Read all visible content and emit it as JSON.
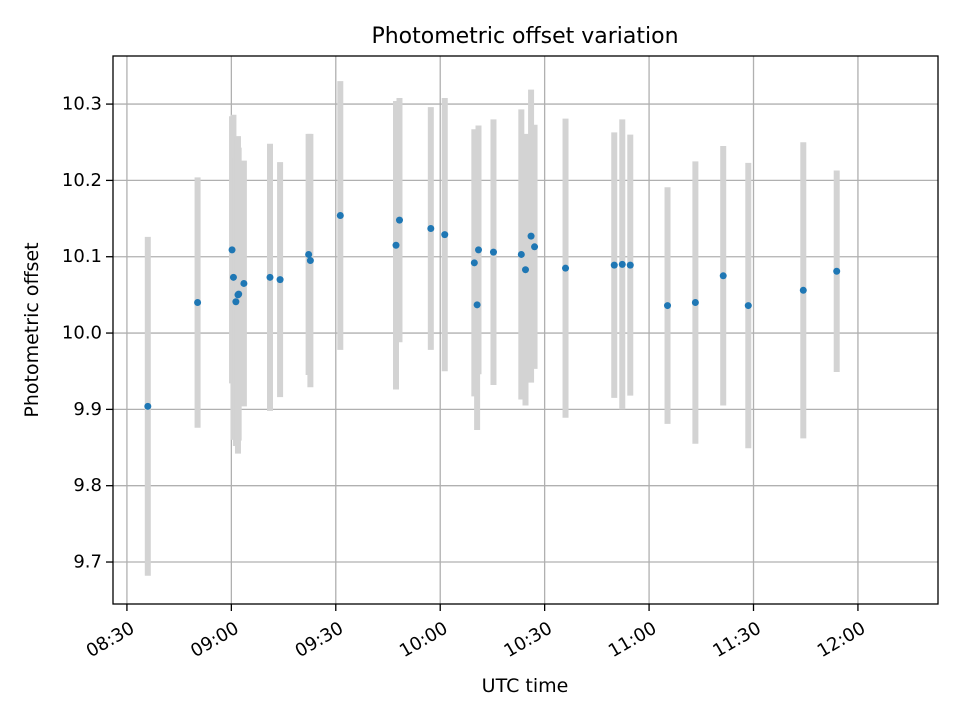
{
  "chart_data": {
    "type": "scatter",
    "title": "Photometric offset variation",
    "xlabel": "UTC time",
    "ylabel": "Photometric offset",
    "grid": true,
    "x_range_minutes": [
      506,
      743
    ],
    "ylim": [
      9.645,
      10.363
    ],
    "x_ticks": [
      {
        "minute": 510,
        "label": "08:30"
      },
      {
        "minute": 540,
        "label": "09:00"
      },
      {
        "minute": 570,
        "label": "09:30"
      },
      {
        "minute": 600,
        "label": "10:00"
      },
      {
        "minute": 630,
        "label": "10:30"
      },
      {
        "minute": 660,
        "label": "11:00"
      },
      {
        "minute": 690,
        "label": "11:30"
      },
      {
        "minute": 720,
        "label": "12:00"
      }
    ],
    "y_ticks": [
      9.7,
      9.8,
      9.9,
      10.0,
      10.1,
      10.2,
      10.3
    ],
    "x_unit": "minutes since 00:00 UTC",
    "series": [
      {
        "name": "offset",
        "marker_color": "#1f77b4",
        "errorbar_color": "#d3d3d3",
        "points": [
          {
            "x": 516.0,
            "y": 9.904,
            "err": 0.222
          },
          {
            "x": 530.3,
            "y": 10.04,
            "err": 0.164
          },
          {
            "x": 540.2,
            "y": 10.109,
            "err": 0.175
          },
          {
            "x": 540.6,
            "y": 10.073,
            "err": 0.213
          },
          {
            "x": 541.3,
            "y": 10.041,
            "err": 0.189
          },
          {
            "x": 541.9,
            "y": 10.05,
            "err": 0.208
          },
          {
            "x": 542.1,
            "y": 10.051,
            "err": 0.192
          },
          {
            "x": 543.6,
            "y": 10.065,
            "err": 0.161
          },
          {
            "x": 551.1,
            "y": 10.073,
            "err": 0.175
          },
          {
            "x": 554.0,
            "y": 10.07,
            "err": 0.154
          },
          {
            "x": 562.2,
            "y": 10.103,
            "err": 0.158
          },
          {
            "x": 562.7,
            "y": 10.095,
            "err": 0.166
          },
          {
            "x": 571.3,
            "y": 10.154,
            "err": 0.176
          },
          {
            "x": 587.3,
            "y": 10.115,
            "err": 0.189
          },
          {
            "x": 588.3,
            "y": 10.148,
            "err": 0.16
          },
          {
            "x": 597.3,
            "y": 10.137,
            "err": 0.159
          },
          {
            "x": 601.3,
            "y": 10.129,
            "err": 0.179
          },
          {
            "x": 609.8,
            "y": 10.092,
            "err": 0.175
          },
          {
            "x": 610.6,
            "y": 10.037,
            "err": 0.164
          },
          {
            "x": 611.0,
            "y": 10.109,
            "err": 0.163
          },
          {
            "x": 615.3,
            "y": 10.106,
            "err": 0.174
          },
          {
            "x": 623.3,
            "y": 10.103,
            "err": 0.19
          },
          {
            "x": 624.5,
            "y": 10.083,
            "err": 0.178
          },
          {
            "x": 626.1,
            "y": 10.127,
            "err": 0.192
          },
          {
            "x": 627.1,
            "y": 10.113,
            "err": 0.16
          },
          {
            "x": 636.0,
            "y": 10.085,
            "err": 0.196
          },
          {
            "x": 650.0,
            "y": 10.089,
            "err": 0.174
          },
          {
            "x": 652.3,
            "y": 10.09,
            "err": 0.19
          },
          {
            "x": 654.6,
            "y": 10.089,
            "err": 0.171
          },
          {
            "x": 665.3,
            "y": 10.036,
            "err": 0.155
          },
          {
            "x": 673.3,
            "y": 10.04,
            "err": 0.185
          },
          {
            "x": 681.3,
            "y": 10.075,
            "err": 0.17
          },
          {
            "x": 688.5,
            "y": 10.036,
            "err": 0.187
          },
          {
            "x": 704.3,
            "y": 10.056,
            "err": 0.194
          },
          {
            "x": 713.9,
            "y": 10.081,
            "err": 0.132
          }
        ]
      }
    ]
  }
}
